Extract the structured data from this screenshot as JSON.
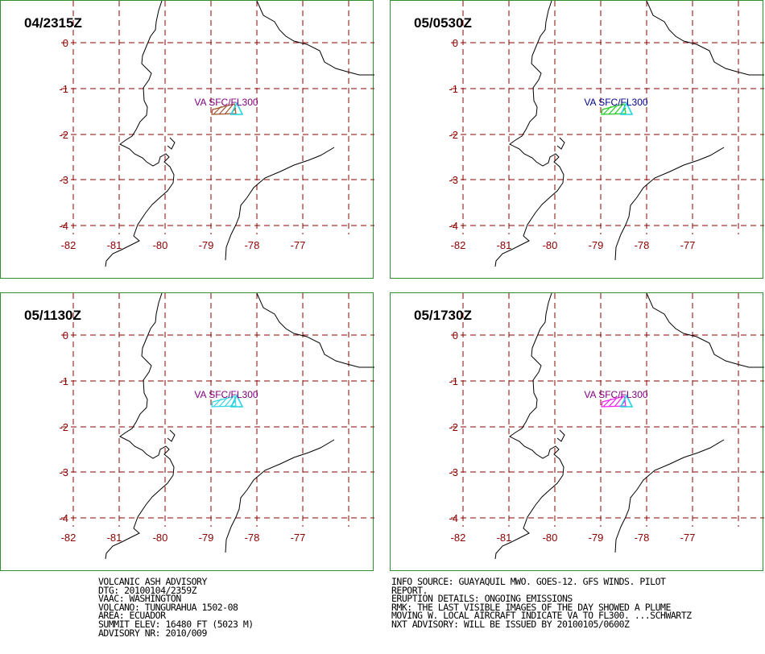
{
  "panels": [
    {
      "title": "04/2315Z",
      "va_label": "VA SFC/FL300",
      "label_color": "#800080",
      "plume_color": "#a0522d"
    },
    {
      "title": "05/0530Z",
      "va_label": "VA SFC/FL300",
      "label_color": "#00008b",
      "plume_color": "#22cc22"
    },
    {
      "title": "05/1130Z",
      "va_label": "VA SFC/FL300",
      "label_color": "#800080",
      "plume_color": "#33d6e6"
    },
    {
      "title": "05/1730Z",
      "va_label": "VA SFC/FL300",
      "label_color": "#800080",
      "plume_color": "#ee22ee"
    }
  ],
  "volcano_color": "#22d3e0",
  "axis_color": "#8b0000",
  "lat_labels": [
    "0",
    "-1",
    "-2",
    "-3",
    "-4"
  ],
  "lon_labels": [
    "-82",
    "-81",
    "-80",
    "-79",
    "-78",
    "-77"
  ],
  "advisory_left": [
    "VOLCANIC ASH ADVISORY",
    "DTG: 20100104/2359Z",
    "VAAC: WASHINGTON",
    "VOLCANO: TUNGURAHUA 1502-08",
    "AREA: ECUADOR",
    "SUMMIT ELEV: 16480 FT (5023 M)",
    "ADVISORY NR: 2010/009"
  ],
  "advisory_right": [
    "INFO SOURCE: GUAYAQUIL MWO. GOES-12. GFS WINDS. PILOT",
    "REPORT.",
    "ERUPTION DETAILS: ONGOING EMISSIONS",
    "RMK: THE LAST VISIBLE IMAGES OF THE DAY SHOWED A PLUME",
    "MOVING W. LOCAL AIRCRAFT INDICATE VA TO FL300. ...SCHWARTZ",
    "NXT ADVISORY: WILL BE ISSUED BY 20100105/0600Z"
  ]
}
